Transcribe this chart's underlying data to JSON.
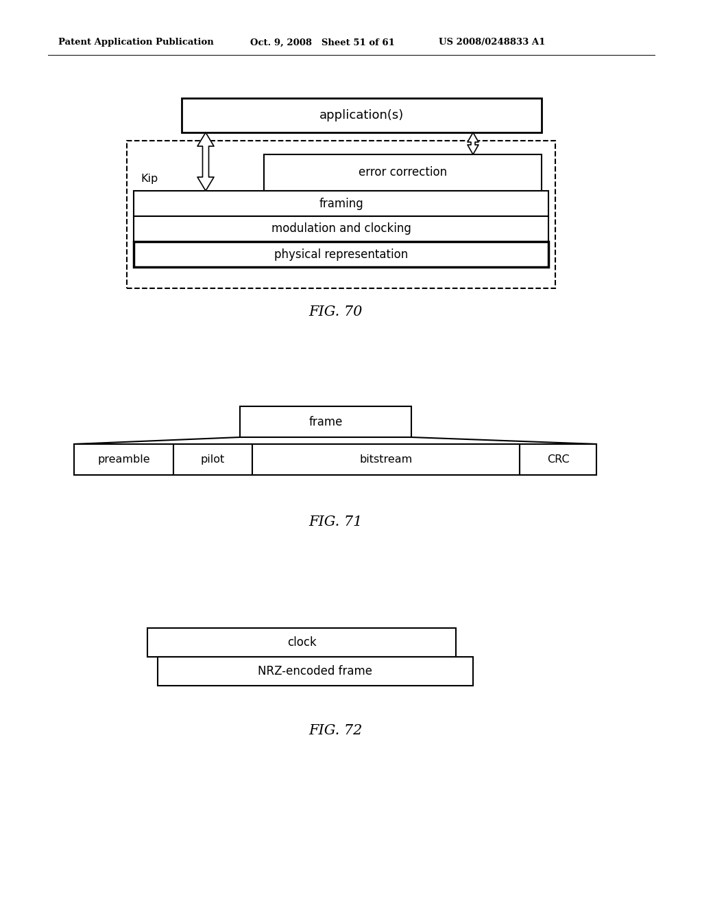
{
  "bg_color": "#ffffff",
  "header_left": "Patent Application Publication",
  "header_mid": "Oct. 9, 2008   Sheet 51 of 61",
  "header_right": "US 2008/0248833 A1",
  "fig70_label": "FIG. 70",
  "fig71_label": "FIG. 71",
  "fig72_label": "FIG. 72",
  "fig70": {
    "applications_label": "application(s)",
    "kip_label": "Kip",
    "error_correction_label": "error correction",
    "framing_label": "framing",
    "modulation_label": "modulation and clocking",
    "physical_label": "physical representation"
  },
  "fig71": {
    "frame_label": "frame",
    "preamble_label": "preamble",
    "pilot_label": "pilot",
    "bitstream_label": "bitstream",
    "crc_label": "CRC"
  },
  "fig72": {
    "clock_label": "clock",
    "nrz_label": "NRZ-encoded frame"
  }
}
